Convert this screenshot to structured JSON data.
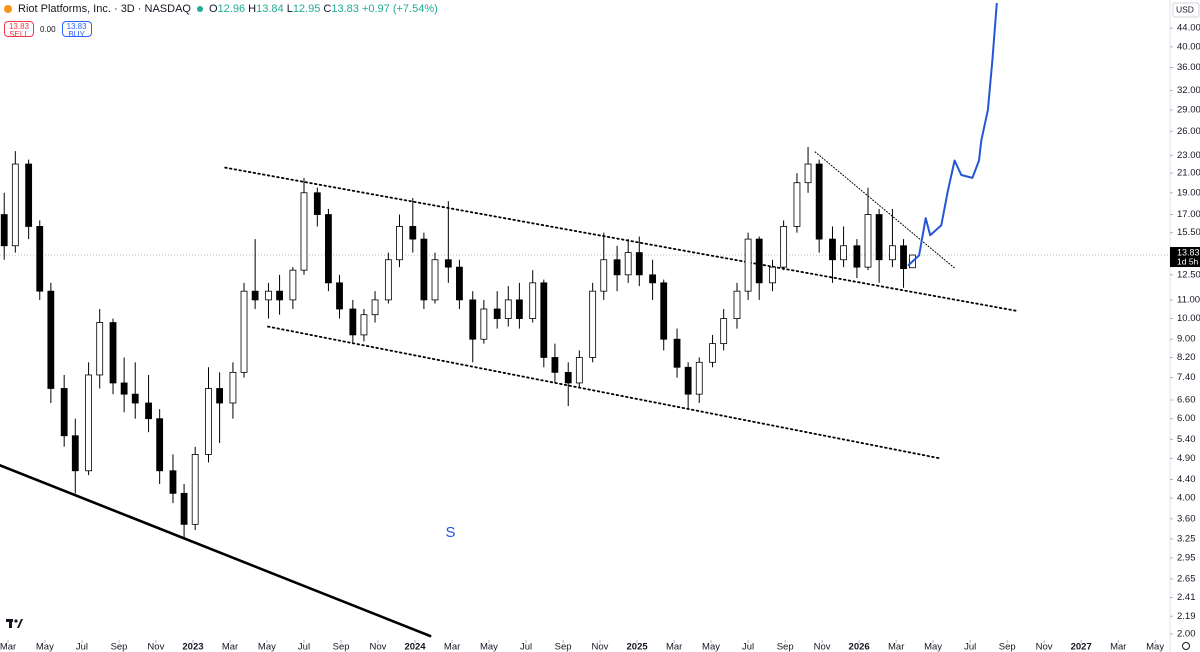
{
  "header": {
    "title": "Riot Platforms, Inc. · 3D · NASDAQ",
    "ohlc": [
      {
        "label": "O",
        "value": "12.96"
      },
      {
        "label": "H",
        "value": "13.84"
      },
      {
        "label": "L",
        "value": "12.95"
      },
      {
        "label": "C",
        "value": "13.83"
      }
    ],
    "change": "+0.97 (+7.54%)",
    "sell": {
      "price": "13.83",
      "label": "SELL"
    },
    "spread": "0.00",
    "buy": {
      "price": "13.83",
      "label": "BUY"
    }
  },
  "chart_data": {
    "type": "candlestick",
    "log_scale": true,
    "currency": "USD",
    "up_color": "#ffffff",
    "down_color": "#000000",
    "outline_color": "#000000",
    "xlim": [
      2022.131,
      2027.4
    ],
    "ylim": [
      1.94,
      50.8
    ],
    "yticks": [
      {
        "value": 44,
        "label": "44.00"
      },
      {
        "value": 40,
        "label": "40.00"
      },
      {
        "value": 36,
        "label": "36.00"
      },
      {
        "value": 32,
        "label": "32.00"
      },
      {
        "value": 29,
        "label": "29.00"
      },
      {
        "value": 26,
        "label": "26.00"
      },
      {
        "value": 23,
        "label": "23.00"
      },
      {
        "value": 21,
        "label": "21.00"
      },
      {
        "value": 19,
        "label": "19.00"
      },
      {
        "value": 17,
        "label": "17.00"
      },
      {
        "value": 15.5,
        "label": "15.50"
      },
      {
        "value": 12.5,
        "label": "12.50"
      },
      {
        "value": 11,
        "label": "11.00"
      },
      {
        "value": 10,
        "label": "10.00"
      },
      {
        "value": 9,
        "label": "9.00"
      },
      {
        "value": 8.2,
        "label": "8.20"
      },
      {
        "value": 7.4,
        "label": "7.40"
      },
      {
        "value": 6.6,
        "label": "6.60"
      },
      {
        "value": 6,
        "label": "6.00"
      },
      {
        "value": 5.4,
        "label": "5.40"
      },
      {
        "value": 4.9,
        "label": "4.90"
      },
      {
        "value": 4.4,
        "label": "4.40"
      },
      {
        "value": 4,
        "label": "4.00"
      },
      {
        "value": 3.6,
        "label": "3.60"
      },
      {
        "value": 3.25,
        "label": "3.25"
      },
      {
        "value": 2.95,
        "label": "2.95"
      },
      {
        "value": 2.65,
        "label": "2.65"
      },
      {
        "value": 2.41,
        "label": "2.41"
      },
      {
        "value": 2.19,
        "label": "2.19"
      },
      {
        "value": 2,
        "label": "2.00"
      }
    ],
    "xticks": [
      {
        "value": 2022.167,
        "label": "Mar"
      },
      {
        "value": 2022.333,
        "label": "May"
      },
      {
        "value": 2022.5,
        "label": "Jul"
      },
      {
        "value": 2022.667,
        "label": "Sep"
      },
      {
        "value": 2022.833,
        "label": "Nov"
      },
      2023,
      {
        "value": 2023.167,
        "label": "Mar"
      },
      {
        "value": 2023.333,
        "label": "May"
      },
      {
        "value": 2023.5,
        "label": "Jul"
      },
      {
        "value": 2023.667,
        "label": "Sep"
      },
      {
        "value": 2023.833,
        "label": "Nov"
      },
      2024,
      {
        "value": 2024.167,
        "label": "Mar"
      },
      {
        "value": 2024.333,
        "label": "May"
      },
      {
        "value": 2024.5,
        "label": "Jul"
      },
      {
        "value": 2024.667,
        "label": "Sep"
      },
      {
        "value": 2024.833,
        "label": "Nov"
      },
      2025,
      {
        "value": 2025.167,
        "label": "Mar"
      },
      {
        "value": 2025.333,
        "label": "May"
      },
      {
        "value": 2025.5,
        "label": "Jul"
      },
      {
        "value": 2025.667,
        "label": "Sep"
      },
      {
        "value": 2025.833,
        "label": "Nov"
      },
      2026,
      {
        "value": 2026.167,
        "label": "Mar"
      },
      {
        "value": 2026.333,
        "label": "May"
      },
      {
        "value": 2026.5,
        "label": "Jul"
      },
      {
        "value": 2026.667,
        "label": "Sep"
      },
      {
        "value": 2026.833,
        "label": "Nov"
      },
      2027,
      {
        "value": 2027.167,
        "label": "Mar"
      },
      {
        "value": 2027.333,
        "label": "May"
      }
    ],
    "candles": {
      "x": [
        2022.15,
        2022.2,
        2022.26,
        2022.31,
        2022.36,
        2022.42,
        2022.47,
        2022.53,
        2022.58,
        2022.64,
        2022.69,
        2022.74,
        2022.8,
        2022.85,
        2022.91,
        2022.96,
        2023.01,
        2023.07,
        2023.12,
        2023.18,
        2023.23,
        2023.28,
        2023.34,
        2023.39,
        2023.45,
        2023.5,
        2023.56,
        2023.61,
        2023.66,
        2023.72,
        2023.77,
        2023.82,
        2023.88,
        2023.93,
        2023.99,
        2024.04,
        2024.09,
        2024.15,
        2024.2,
        2024.26,
        2024.31,
        2024.37,
        2024.42,
        2024.47,
        2024.53,
        2024.58,
        2024.63,
        2024.69,
        2024.74,
        2024.8,
        2024.85,
        2024.91,
        2024.96,
        2025.01,
        2025.07,
        2025.12,
        2025.18,
        2025.23,
        2025.28,
        2025.34,
        2025.39,
        2025.45,
        2025.5,
        2025.55,
        2025.61,
        2025.66,
        2025.72,
        2025.77,
        2025.82,
        2025.88,
        2025.93,
        2025.99,
        2026.04,
        2026.09,
        2026.15,
        2026.2,
        2026.24
      ],
      "open": [
        17,
        14.5,
        22,
        16,
        11.5,
        7,
        5.5,
        4.6,
        7.5,
        9.8,
        7.2,
        6.8,
        6.5,
        6,
        4.6,
        4.1,
        3.5,
        5,
        7,
        6.5,
        7.6,
        11.5,
        11,
        11.5,
        11,
        12.8,
        19,
        17,
        12,
        10.5,
        9.2,
        10.2,
        11,
        13.5,
        16,
        15,
        11,
        13.5,
        13,
        11,
        9,
        10.5,
        10,
        11,
        10,
        12,
        8.2,
        7.6,
        7.2,
        8.2,
        11.5,
        13.5,
        12.5,
        14,
        12.5,
        12,
        9,
        7.8,
        6.8,
        8,
        8.8,
        10,
        11.5,
        15,
        12,
        13,
        16,
        20,
        22,
        15,
        13.5,
        14.5,
        13,
        17,
        13.5,
        14.5,
        12.96
      ],
      "high": [
        19,
        23.5,
        22.5,
        16.5,
        12,
        7.5,
        6,
        8,
        10.5,
        10,
        8.2,
        8,
        7.5,
        6.3,
        5,
        4.3,
        5.2,
        7.8,
        7.6,
        8,
        12,
        15,
        12,
        12.5,
        13,
        20.5,
        19.5,
        17.5,
        12.5,
        11,
        10.5,
        11.5,
        14,
        17,
        18.5,
        15.5,
        14,
        18.2,
        13.5,
        11.5,
        11,
        11.5,
        11.8,
        12,
        12.8,
        12.2,
        8.8,
        8,
        8.5,
        12,
        15.5,
        14.5,
        15,
        15.2,
        13.5,
        12.2,
        9.5,
        8,
        8.2,
        9.2,
        10.5,
        12,
        15.5,
        15.2,
        13.5,
        16.5,
        21,
        24,
        22.5,
        16,
        16,
        15,
        19.5,
        17.5,
        17.5,
        15,
        13.84
      ],
      "low": [
        13.5,
        14,
        15,
        11,
        6.5,
        5.2,
        4.1,
        4.5,
        7,
        6.8,
        6.2,
        6,
        5.6,
        4.3,
        3.9,
        3.25,
        3.4,
        4.8,
        5.3,
        6,
        7.4,
        10.5,
        10,
        10.2,
        10.5,
        12.5,
        16,
        11.5,
        10,
        8.8,
        8.9,
        9.8,
        10.8,
        13,
        14,
        10.5,
        10.8,
        12,
        10.5,
        8,
        8.8,
        9.5,
        9.6,
        9.5,
        9.8,
        7.8,
        7.2,
        6.4,
        7,
        8,
        11,
        11.5,
        12,
        11.8,
        11,
        8.5,
        7.4,
        6.3,
        6.5,
        7.8,
        8.5,
        9.5,
        11,
        11,
        11.5,
        12.8,
        15.5,
        19,
        14,
        12,
        13,
        12.3,
        12.8,
        12,
        13,
        11.7,
        12.95
      ],
      "close": [
        14.5,
        22,
        16,
        11.5,
        7,
        5.5,
        4.6,
        7.5,
        9.8,
        7.2,
        6.8,
        6.5,
        6,
        4.6,
        4.1,
        3.5,
        5,
        7,
        6.5,
        7.6,
        11.5,
        11,
        11.5,
        11,
        12.8,
        19,
        17,
        12,
        10.5,
        9.2,
        10.2,
        11,
        13.5,
        16,
        15,
        11,
        13.5,
        13,
        11,
        9,
        10.5,
        10,
        11,
        10,
        12,
        8.2,
        7.6,
        7.2,
        8.2,
        11.5,
        13.5,
        12.5,
        14,
        12.5,
        12,
        9,
        7.8,
        6.8,
        8,
        8.8,
        10,
        11.5,
        15,
        12,
        13,
        16,
        20,
        22,
        15,
        13.5,
        14.5,
        13,
        17,
        13.5,
        14.5,
        12.9,
        13.83
      ]
    },
    "last_price": {
      "value": 13.83,
      "countdown": "1d 5h",
      "color": "#000000"
    },
    "trendlines": [
      {
        "style": "solid",
        "color": "#000000",
        "x": [
          2022.131,
          2024.068
        ],
        "y": [
          4.73,
          1.98
        ]
      },
      {
        "style": "dotted",
        "color": "#000000",
        "x": [
          2023.145,
          2026.71
        ],
        "y": [
          21.6,
          10.4
        ]
      },
      {
        "style": "dotted",
        "color": "#000000",
        "x": [
          2023.338,
          2026.365
        ],
        "y": [
          9.6,
          4.9
        ]
      },
      {
        "style": "thin-dotted",
        "color": "#000000",
        "x": [
          2025.802,
          2026.433
        ],
        "y": [
          23.4,
          12.9
        ]
      }
    ],
    "projection": {
      "color": "#2456d6",
      "x": [
        2026.22,
        2026.27,
        2026.3,
        2026.32,
        2026.37,
        2026.4,
        2026.43,
        2026.46,
        2026.51,
        2026.54,
        2026.55,
        2026.58,
        2026.6,
        2026.62
      ],
      "y": [
        13.1,
        13.8,
        16.7,
        15.3,
        16.1,
        19.2,
        22.4,
        20.8,
        20.5,
        22.4,
        24.8,
        29.0,
        37.4,
        50
      ]
    },
    "annotation": {
      "text": "S",
      "x": 2024.16,
      "y": 3.35,
      "color": "#2456d6"
    }
  }
}
